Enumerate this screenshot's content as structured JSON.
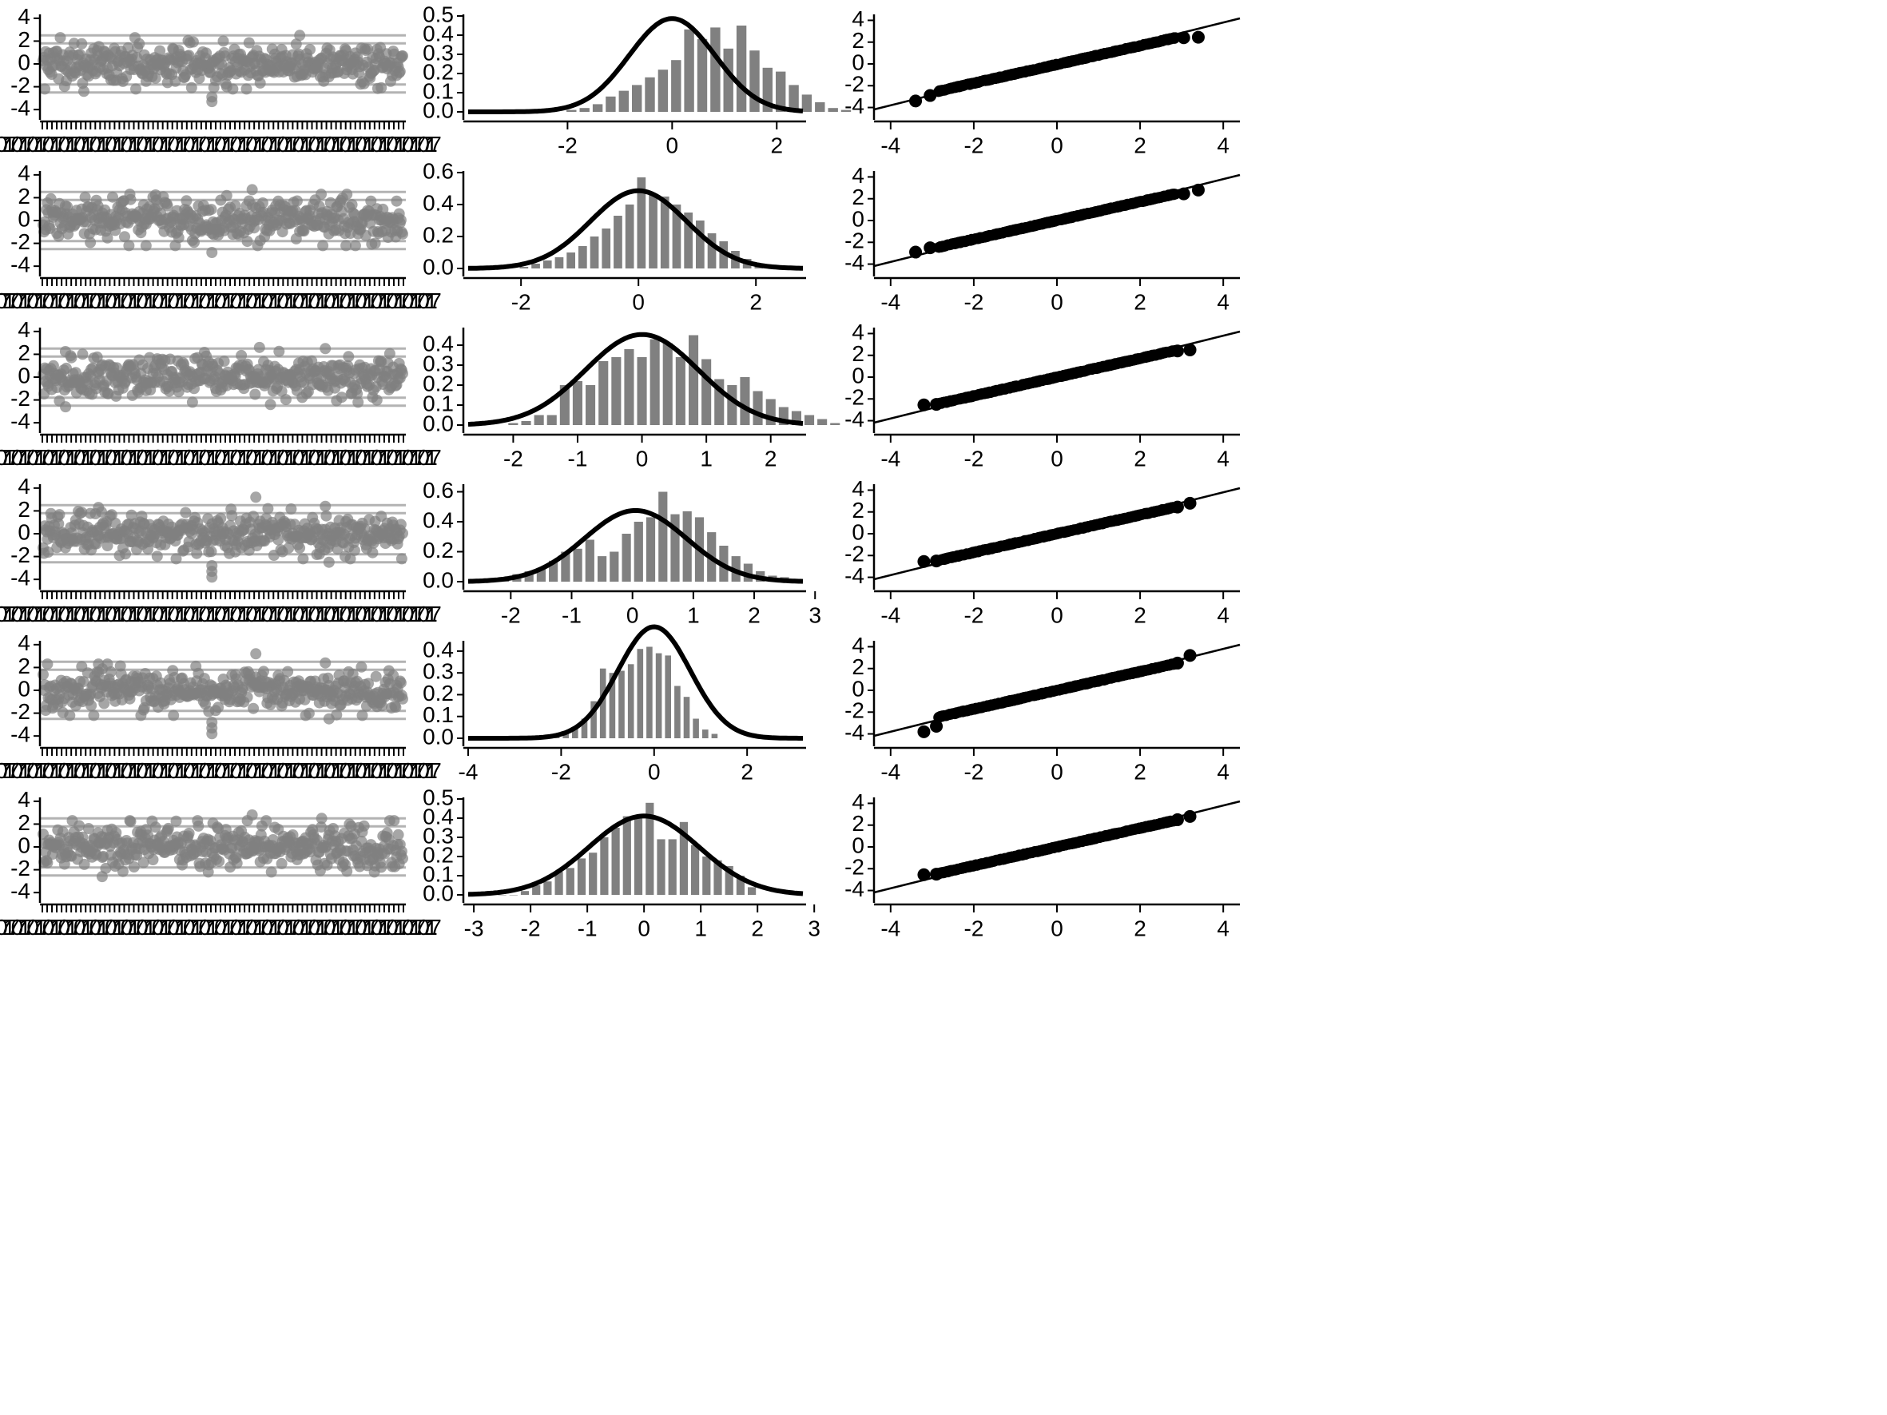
{
  "colors": {
    "axis": "#000000",
    "points": "#808080",
    "bars": "#808080",
    "refLines": "#b3b3b3",
    "curve": "#000000",
    "qqPoints": "#000000"
  },
  "chart_data": [
    {
      "row": 1,
      "panels": [
        {
          "type": "scatter",
          "role": "residual-index-plot",
          "ylim": [
            -4.2,
            4.2
          ],
          "y_ticks": [
            -4,
            -2,
            0,
            2,
            4
          ],
          "x_tick_label_note": "overprinted dense index tick labels",
          "ref_lines": [
            2.5,
            1.8,
            -1.8,
            -2.5
          ],
          "spread": 0.9,
          "outliers": [
            [
              0.47,
              -3.3
            ],
            [
              0.47,
              -2.9
            ],
            [
              0.12,
              -2.4
            ],
            [
              0.71,
              2.5
            ]
          ]
        },
        {
          "type": "bar",
          "role": "histogram-with-normal-curve",
          "xlim": [
            -3.9,
            2.5
          ],
          "x_ticks": [
            -2,
            0,
            2
          ],
          "ylim": [
            0,
            0.5
          ],
          "y_ticks": [
            0.0,
            0.1,
            0.2,
            0.3,
            0.4,
            0.5
          ],
          "y_tick_labels": [
            "0.0",
            "0.1",
            "0.2",
            "0.3",
            "0.4",
            "0.5"
          ],
          "bin_width": 0.25,
          "bin_start": -2.05,
          "densities": [
            0.01,
            0.02,
            0.04,
            0.08,
            0.11,
            0.14,
            0.18,
            0.22,
            0.27,
            0.43,
            0.38,
            0.44,
            0.33,
            0.45,
            0.32,
            0.23,
            0.21,
            0.14,
            0.09,
            0.05,
            0.02,
            0.01
          ],
          "normal_curve": {
            "mean": 0.0,
            "sd": 0.82
          }
        },
        {
          "type": "scatter",
          "role": "normal-qq-plot",
          "xlim": [
            -4.4,
            4.4
          ],
          "ylim": [
            -4.4,
            4.4
          ],
          "x_ticks": [
            -4,
            -2,
            0,
            2,
            4
          ],
          "y_ticks": [
            -4,
            -2,
            0,
            2,
            4
          ],
          "ref_line": {
            "intercept": 0.0,
            "slope": 0.95
          },
          "n_points": 480,
          "slope": 0.86,
          "intercept": -0.05,
          "first": [
            [
              -3.4,
              -3.4
            ],
            [
              -3.05,
              -2.9
            ]
          ],
          "last": [
            [
              3.05,
              2.4
            ],
            [
              3.4,
              2.45
            ]
          ]
        }
      ]
    },
    {
      "row": 2,
      "panels": [
        {
          "type": "scatter",
          "role": "residual-index-plot",
          "ylim": [
            -4.2,
            4.2
          ],
          "y_ticks": [
            -4,
            -2,
            0,
            2,
            4
          ],
          "x_tick_label_note": "overprinted dense index tick labels",
          "ref_lines": [
            2.5,
            1.8,
            -1.8,
            -2.5
          ],
          "spread": 0.9,
          "outliers": [
            [
              0.47,
              -2.8
            ],
            [
              0.58,
              2.7
            ],
            [
              0.29,
              -2.2
            ]
          ]
        },
        {
          "type": "bar",
          "role": "histogram-with-normal-curve",
          "xlim": [
            -2.9,
            2.8
          ],
          "x_ticks": [
            -2,
            0,
            2
          ],
          "ylim": [
            0,
            0.6
          ],
          "y_ticks": [
            0.0,
            0.2,
            0.4,
            0.6
          ],
          "y_tick_labels": [
            "0.0",
            "0.2",
            "0.4",
            "0.6"
          ],
          "bin_width": 0.2,
          "bin_start": -2.05,
          "densities": [
            0.01,
            0.03,
            0.05,
            0.07,
            0.1,
            0.14,
            0.2,
            0.25,
            0.33,
            0.4,
            0.57,
            0.46,
            0.45,
            0.4,
            0.35,
            0.3,
            0.22,
            0.17,
            0.11,
            0.06,
            0.03,
            0.02
          ],
          "normal_curve": {
            "mean": 0.0,
            "sd": 0.82
          }
        },
        {
          "type": "scatter",
          "role": "normal-qq-plot",
          "xlim": [
            -4.4,
            4.4
          ],
          "ylim": [
            -4.4,
            4.4
          ],
          "x_ticks": [
            -4,
            -2,
            0,
            2,
            4
          ],
          "y_ticks": [
            -4,
            -2,
            0,
            2,
            4
          ],
          "ref_line": {
            "intercept": 0.0,
            "slope": 0.95
          },
          "n_points": 480,
          "slope": 0.86,
          "intercept": 0.0,
          "first": [
            [
              -3.4,
              -2.9
            ],
            [
              -3.05,
              -2.5
            ]
          ],
          "last": [
            [
              3.05,
              2.45
            ],
            [
              3.4,
              2.8
            ]
          ]
        }
      ]
    },
    {
      "row": 3,
      "panels": [
        {
          "type": "scatter",
          "role": "residual-index-plot",
          "ylim": [
            -4.2,
            4.2
          ],
          "y_ticks": [
            -4,
            -2,
            0,
            2,
            4
          ],
          "x_tick_label_note": "overprinted dense index tick labels",
          "ref_lines": [
            2.5,
            1.8,
            -1.8,
            -2.5
          ],
          "spread": 0.9,
          "outliers": [
            [
              0.07,
              -2.6
            ],
            [
              0.63,
              -2.4
            ],
            [
              0.78,
              2.5
            ],
            [
              0.6,
              2.6
            ]
          ]
        },
        {
          "type": "bar",
          "role": "histogram-with-normal-curve",
          "xlim": [
            -2.7,
            2.5
          ],
          "x_ticks": [
            -2,
            -1,
            0,
            1,
            2
          ],
          "ylim": [
            0,
            0.48
          ],
          "y_ticks": [
            0.0,
            0.1,
            0.2,
            0.3,
            0.4
          ],
          "y_tick_labels": [
            "0.0",
            "0.1",
            "0.2",
            "0.3",
            "0.4"
          ],
          "bin_width": 0.2,
          "bin_start": -2.1,
          "densities": [
            0.01,
            0.02,
            0.05,
            0.05,
            0.2,
            0.22,
            0.2,
            0.32,
            0.34,
            0.38,
            0.34,
            0.43,
            0.41,
            0.34,
            0.45,
            0.33,
            0.23,
            0.2,
            0.24,
            0.17,
            0.13,
            0.09,
            0.07,
            0.05,
            0.03,
            0.01
          ],
          "normal_curve": {
            "mean": 0.0,
            "sd": 0.88
          }
        },
        {
          "type": "scatter",
          "role": "normal-qq-plot",
          "xlim": [
            -4.4,
            4.4
          ],
          "ylim": [
            -4.4,
            4.4
          ],
          "x_ticks": [
            -4,
            -2,
            0,
            2,
            4
          ],
          "y_ticks": [
            -4,
            -2,
            0,
            2,
            4
          ],
          "ref_line": {
            "intercept": 0.0,
            "slope": 0.95
          },
          "n_points": 480,
          "slope": 0.86,
          "intercept": 0.0,
          "first": [
            [
              -3.2,
              -2.55
            ],
            [
              -2.9,
              -2.5
            ]
          ],
          "last": [
            [
              2.9,
              2.4
            ],
            [
              3.2,
              2.5
            ]
          ]
        }
      ]
    },
    {
      "row": 4,
      "panels": [
        {
          "type": "scatter",
          "role": "residual-index-plot",
          "ylim": [
            -4.2,
            4.2
          ],
          "y_ticks": [
            -4,
            -2,
            0,
            2,
            4
          ],
          "x_tick_label_note": "overprinted dense index tick labels",
          "ref_lines": [
            2.5,
            1.8,
            -1.8,
            -2.5
          ],
          "spread": 0.9,
          "outliers": [
            [
              0.47,
              -3.8
            ],
            [
              0.47,
              -3.3
            ],
            [
              0.47,
              -2.8
            ],
            [
              0.59,
              3.2
            ],
            [
              0.78,
              2.4
            ],
            [
              0.79,
              -2.5
            ],
            [
              0.16,
              2.3
            ]
          ]
        },
        {
          "type": "bar",
          "role": "histogram-with-normal-curve",
          "xlim": [
            -2.7,
            2.8
          ],
          "x_ticks": [
            -2,
            -1,
            0,
            1,
            2,
            3
          ],
          "ylim": [
            0,
            0.64
          ],
          "y_ticks": [
            0.0,
            0.2,
            0.4,
            0.6
          ],
          "y_tick_labels": [
            "0.0",
            "0.2",
            "0.4",
            "0.6"
          ],
          "bin_width": 0.2,
          "bin_start": -2.2,
          "densities": [
            0.02,
            0.05,
            0.07,
            0.09,
            0.14,
            0.2,
            0.22,
            0.28,
            0.17,
            0.2,
            0.32,
            0.4,
            0.43,
            0.6,
            0.45,
            0.47,
            0.43,
            0.33,
            0.24,
            0.17,
            0.12,
            0.07,
            0.04,
            0.03,
            0.01
          ],
          "normal_curve": {
            "mean": 0.05,
            "sd": 0.84
          }
        },
        {
          "type": "scatter",
          "role": "normal-qq-plot",
          "xlim": [
            -4.4,
            4.4
          ],
          "ylim": [
            -4.4,
            4.4
          ],
          "x_ticks": [
            -4,
            -2,
            0,
            2,
            4
          ],
          "y_ticks": [
            -4,
            -2,
            0,
            2,
            4
          ],
          "ref_line": {
            "intercept": 0.0,
            "slope": 0.95
          },
          "n_points": 480,
          "slope": 0.86,
          "intercept": 0.0,
          "first": [
            [
              -3.2,
              -2.55
            ],
            [
              -2.9,
              -2.5
            ]
          ],
          "last": [
            [
              2.9,
              2.45
            ],
            [
              3.2,
              2.8
            ]
          ]
        }
      ]
    },
    {
      "row": 5,
      "panels": [
        {
          "type": "scatter",
          "role": "residual-index-plot",
          "ylim": [
            -4.2,
            4.2
          ],
          "y_ticks": [
            -4,
            -2,
            0,
            2,
            4
          ],
          "x_tick_label_note": "overprinted dense index tick labels",
          "ref_lines": [
            2.5,
            1.8,
            -1.8,
            -2.5
          ],
          "spread": 0.9,
          "outliers": [
            [
              0.47,
              -3.8
            ],
            [
              0.47,
              -3.3
            ],
            [
              0.47,
              -2.8
            ],
            [
              0.59,
              3.2
            ],
            [
              0.78,
              2.4
            ],
            [
              0.79,
              -2.5
            ],
            [
              0.16,
              2.3
            ]
          ]
        },
        {
          "type": "bar",
          "role": "histogram-with-normal-curve",
          "xlim": [
            -4.0,
            3.2
          ],
          "x_ticks": [
            -4,
            -2,
            0,
            2
          ],
          "ylim": [
            0,
            0.44
          ],
          "y_ticks": [
            0.0,
            0.1,
            0.2,
            0.3,
            0.4
          ],
          "y_tick_labels": [
            "0.0",
            "0.1",
            "0.2",
            "0.3",
            "0.4"
          ],
          "bin_width": 0.2,
          "bin_start": -2.2,
          "densities": [
            0.01,
            0.02,
            0.05,
            0.09,
            0.17,
            0.32,
            0.3,
            0.31,
            0.34,
            0.41,
            0.42,
            0.39,
            0.38,
            0.24,
            0.19,
            0.09,
            0.04,
            0.02
          ],
          "normal_curve": {
            "mean": 0.0,
            "sd": 0.78
          }
        },
        {
          "type": "scatter",
          "role": "normal-qq-plot",
          "xlim": [
            -4.4,
            4.4
          ],
          "ylim": [
            -4.4,
            4.4
          ],
          "x_ticks": [
            -4,
            -2,
            0,
            2,
            4
          ],
          "y_ticks": [
            -4,
            -2,
            0,
            2,
            4
          ],
          "ref_line": {
            "intercept": 0.0,
            "slope": 0.95
          },
          "n_points": 480,
          "slope": 0.86,
          "intercept": 0.0,
          "first": [
            [
              -3.2,
              -3.8
            ],
            [
              -2.9,
              -3.3
            ]
          ],
          "last": [
            [
              2.9,
              2.5
            ],
            [
              3.2,
              3.2
            ]
          ]
        }
      ]
    },
    {
      "row": 6,
      "panels": [
        {
          "type": "scatter",
          "role": "residual-index-plot",
          "ylim": [
            -4.2,
            4.2
          ],
          "y_ticks": [
            -4,
            -2,
            0,
            2,
            4
          ],
          "x_tick_label_note": "overprinted dense index tick labels",
          "ref_lines": [
            2.5,
            1.8,
            -1.8,
            -2.5
          ],
          "spread": 0.9,
          "outliers": [
            [
              0.58,
              2.8
            ],
            [
              0.17,
              -2.6
            ],
            [
              0.77,
              2.5
            ],
            [
              0.46,
              -2.2
            ]
          ]
        },
        {
          "type": "bar",
          "role": "histogram-with-normal-curve",
          "xlim": [
            -3.1,
            2.8
          ],
          "x_ticks": [
            -3,
            -2,
            -1,
            0,
            1,
            2,
            3
          ],
          "ylim": [
            0,
            0.5
          ],
          "y_ticks": [
            0.0,
            0.1,
            0.2,
            0.3,
            0.4,
            0.5
          ],
          "y_tick_labels": [
            "0.0",
            "0.1",
            "0.2",
            "0.3",
            "0.4",
            "0.5"
          ],
          "bin_width": 0.2,
          "bin_start": -2.8,
          "densities": [
            0.02,
            0.0,
            0.0,
            0.02,
            0.05,
            0.07,
            0.12,
            0.14,
            0.19,
            0.22,
            0.3,
            0.35,
            0.41,
            0.4,
            0.48,
            0.29,
            0.29,
            0.38,
            0.26,
            0.2,
            0.18,
            0.15,
            0.1,
            0.04
          ],
          "normal_curve": {
            "mean": 0.0,
            "sd": 0.97
          }
        },
        {
          "type": "scatter",
          "role": "normal-qq-plot",
          "xlim": [
            -4.4,
            4.4
          ],
          "ylim": [
            -4.4,
            4.4
          ],
          "x_ticks": [
            -4,
            -2,
            0,
            2,
            4
          ],
          "y_ticks": [
            -4,
            -2,
            0,
            2,
            4
          ],
          "ref_line": {
            "intercept": 0.0,
            "slope": 0.95
          },
          "n_points": 480,
          "slope": 0.86,
          "intercept": 0.0,
          "first": [
            [
              -3.2,
              -2.55
            ],
            [
              -2.9,
              -2.5
            ]
          ],
          "last": [
            [
              2.9,
              2.5
            ],
            [
              3.2,
              2.8
            ]
          ]
        }
      ]
    }
  ]
}
